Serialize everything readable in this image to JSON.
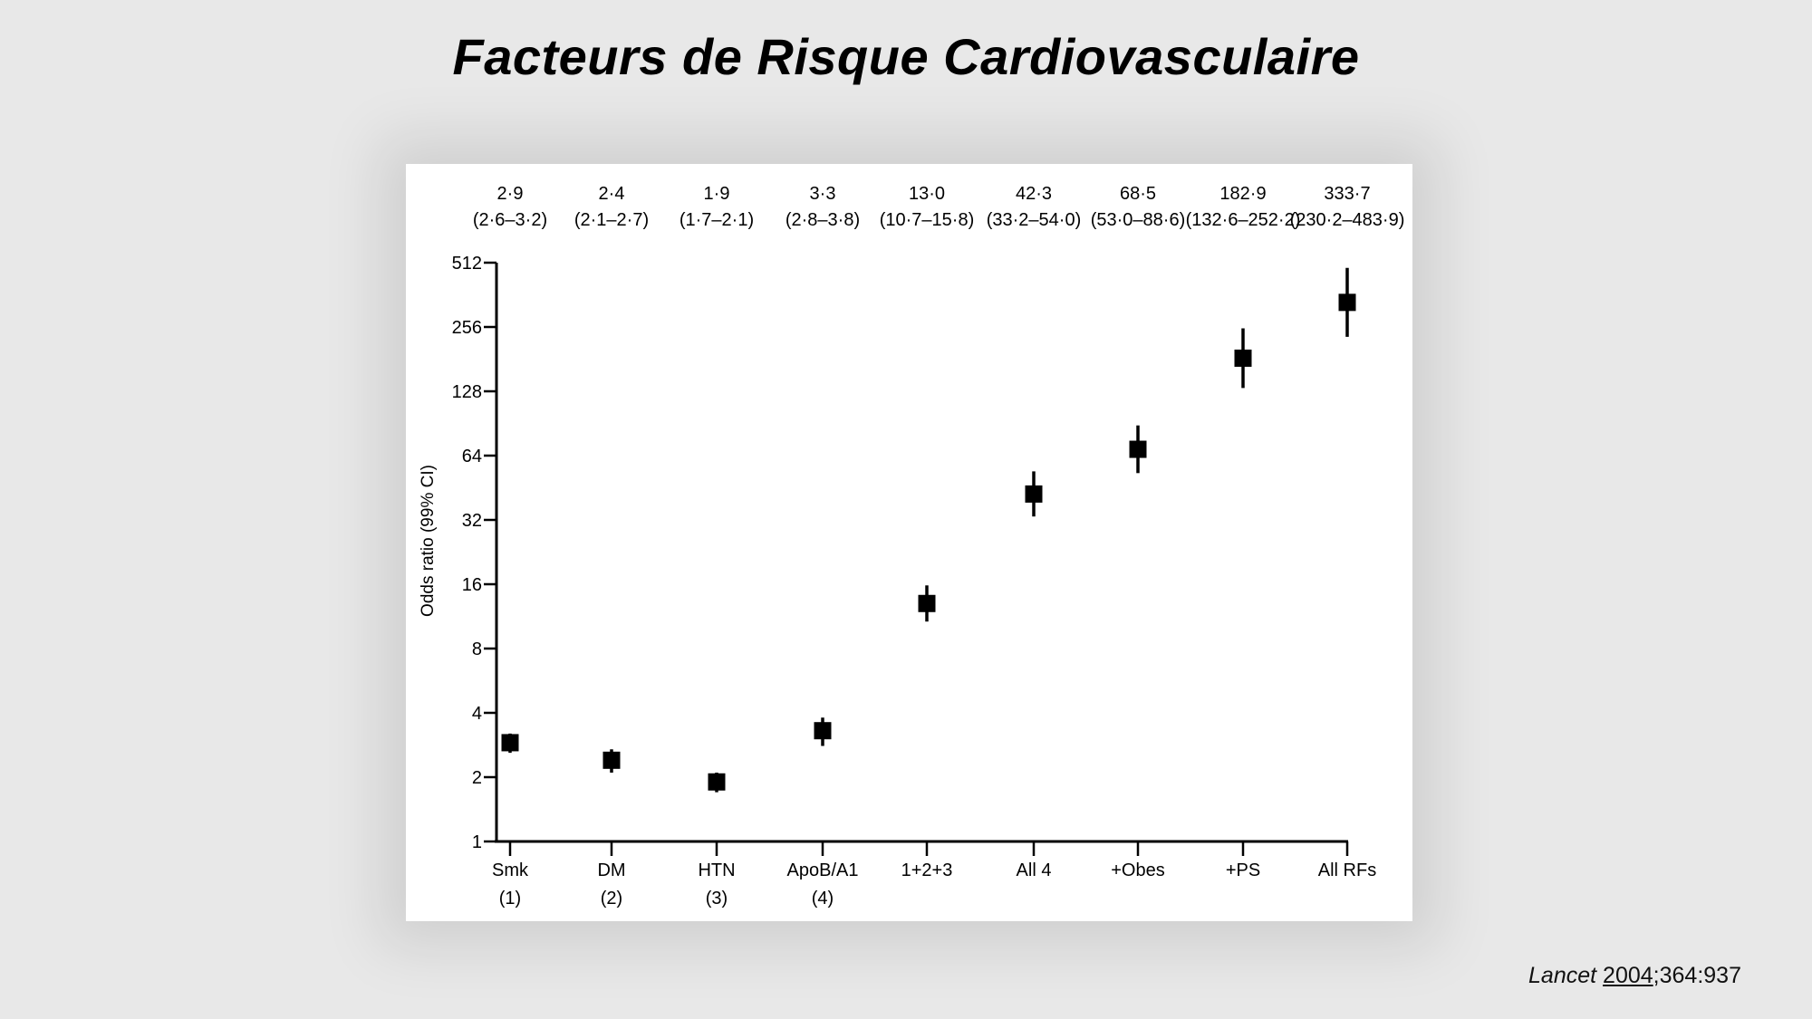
{
  "slide": {
    "title": "Facteurs de Risque Cardiovasculaire",
    "background": "#e8e8e8",
    "citation": {
      "journal": "Lancet",
      "year": "2004",
      "rest": ";364:937"
    }
  },
  "chart_data": {
    "type": "scatter",
    "subtype": "point-estimate with error bars (log2 scale)",
    "title": "",
    "xlabel": "",
    "ylabel": "Odds ratio (99% CI)",
    "yscale": "log2",
    "ylim": [
      1,
      512
    ],
    "yticks": [
      1,
      2,
      4,
      8,
      16,
      32,
      64,
      128,
      256,
      512
    ],
    "ytick_labels": [
      "1",
      "2",
      "4",
      "8",
      "16",
      "32",
      "64",
      "128",
      "256",
      "512"
    ],
    "grid": false,
    "legend": null,
    "marker": "square",
    "marker_color": "#000000",
    "categories": [
      {
        "label": "Smk",
        "sublabel": "(1)"
      },
      {
        "label": "DM",
        "sublabel": "(2)"
      },
      {
        "label": "HTN",
        "sublabel": "(3)"
      },
      {
        "label": "ApoB/A1",
        "sublabel": "(4)"
      },
      {
        "label": "1+2+3",
        "sublabel": ""
      },
      {
        "label": "All 4",
        "sublabel": ""
      },
      {
        "label": "+Obes",
        "sublabel": ""
      },
      {
        "label": "+PS",
        "sublabel": ""
      },
      {
        "label": "All RFs",
        "sublabel": ""
      }
    ],
    "values": [
      2.9,
      2.4,
      1.9,
      3.3,
      13.0,
      42.3,
      68.5,
      182.9,
      333.7
    ],
    "ci_low": [
      2.6,
      2.1,
      1.7,
      2.8,
      10.7,
      33.2,
      53.0,
      132.6,
      230.2
    ],
    "ci_high": [
      3.2,
      2.7,
      2.1,
      3.8,
      15.8,
      54.0,
      88.6,
      252.2,
      483.9
    ],
    "annotations": [
      {
        "value": "2·9",
        "ci": "(2·6–3·2)"
      },
      {
        "value": "2·4",
        "ci": "(2·1–2·7)"
      },
      {
        "value": "1·9",
        "ci": "(1·7–2·1)"
      },
      {
        "value": "3·3",
        "ci": "(2·8–3·8)"
      },
      {
        "value": "13·0",
        "ci": "(10·7–15·8)"
      },
      {
        "value": "42·3",
        "ci": "(33·2–54·0)"
      },
      {
        "value": "68·5",
        "ci": "(53·0–88·6)"
      },
      {
        "value": "182·9",
        "ci": "(132·6–252·2)"
      },
      {
        "value": "333·7",
        "ci": "(230·2–483·9)"
      }
    ]
  }
}
